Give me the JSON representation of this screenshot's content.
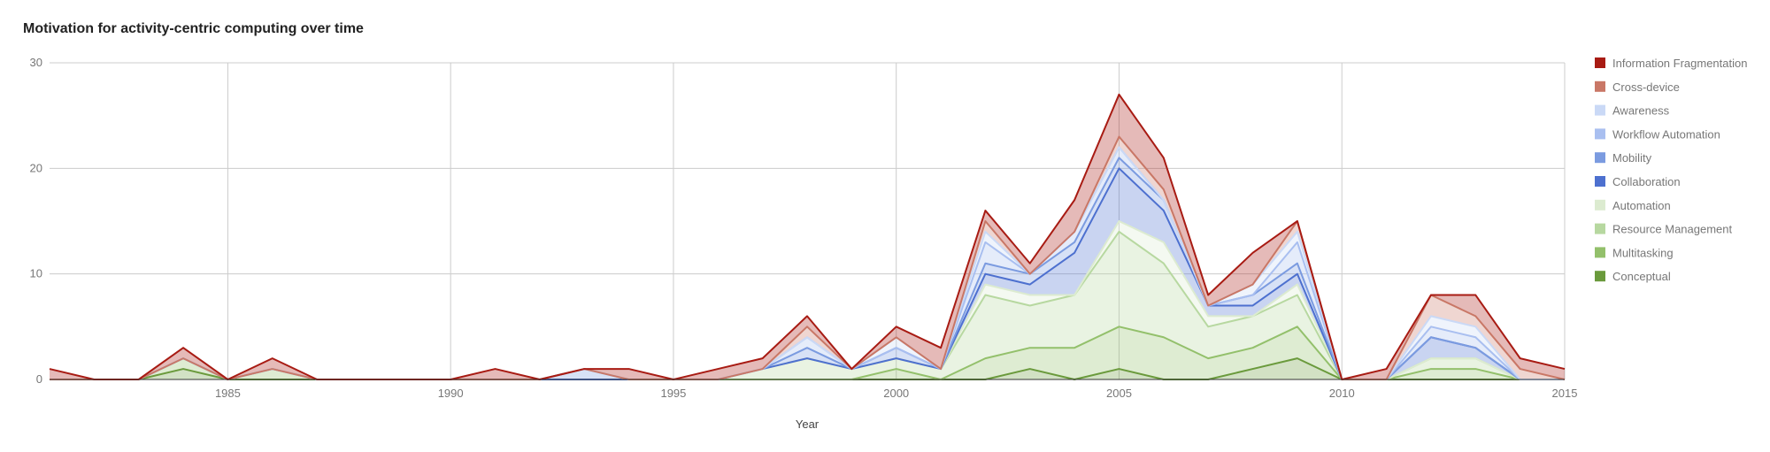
{
  "chart_data": {
    "type": "area",
    "stacked": true,
    "title": "Motivation for activity-centric computing over time",
    "xlabel": "Year",
    "ylabel": "",
    "xlim": [
      1981,
      2015
    ],
    "ylim": [
      0,
      30
    ],
    "x_ticks": [
      1985,
      1990,
      1995,
      2000,
      2005,
      2010,
      2015
    ],
    "y_ticks": [
      0,
      10,
      20,
      30
    ],
    "grid": true,
    "legend_position": "right",
    "x": [
      1981,
      1982,
      1983,
      1984,
      1985,
      1986,
      1987,
      1988,
      1989,
      1990,
      1991,
      1992,
      1993,
      1994,
      1995,
      1996,
      1997,
      1998,
      1999,
      2000,
      2001,
      2002,
      2003,
      2004,
      2005,
      2006,
      2007,
      2008,
      2009,
      2010,
      2011,
      2012,
      2013,
      2014,
      2015
    ],
    "series": [
      {
        "name": "Conceptual",
        "color": "#6a9a3c",
        "values": [
          0,
          0,
          0,
          1,
          0,
          0,
          0,
          0,
          0,
          0,
          0,
          0,
          0,
          0,
          0,
          0,
          0,
          0,
          0,
          0,
          0,
          0,
          1,
          0,
          1,
          0,
          0,
          1,
          2,
          0,
          0,
          0,
          0,
          0,
          0
        ]
      },
      {
        "name": "Multitasking",
        "color": "#93c06b",
        "values": [
          0,
          0,
          0,
          1,
          0,
          1,
          0,
          0,
          0,
          0,
          0,
          0,
          0,
          0,
          0,
          0,
          0,
          0,
          0,
          1,
          0,
          2,
          2,
          3,
          4,
          4,
          2,
          2,
          3,
          0,
          0,
          1,
          1,
          0,
          0
        ]
      },
      {
        "name": "Resource Management",
        "color": "#b7d8a0",
        "values": [
          0,
          0,
          0,
          0,
          0,
          0,
          0,
          0,
          0,
          0,
          0,
          0,
          0,
          0,
          0,
          0,
          1,
          2,
          1,
          1,
          1,
          6,
          4,
          5,
          9,
          7,
          3,
          3,
          3,
          0,
          0,
          1,
          1,
          0,
          0
        ]
      },
      {
        "name": "Automation",
        "color": "#dcebd0",
        "values": [
          0,
          0,
          0,
          0,
          0,
          0,
          0,
          0,
          0,
          0,
          0,
          0,
          0,
          0,
          0,
          0,
          0,
          0,
          0,
          0,
          0,
          1,
          1,
          0,
          1,
          2,
          1,
          0,
          1,
          0,
          0,
          0,
          0,
          0,
          0
        ]
      },
      {
        "name": "Collaboration",
        "color": "#4d70cf",
        "values": [
          0,
          0,
          0,
          0,
          0,
          0,
          0,
          0,
          0,
          0,
          0,
          0,
          0,
          0,
          0,
          0,
          0,
          0,
          0,
          0,
          0,
          1,
          1,
          4,
          5,
          3,
          1,
          1,
          1,
          0,
          0,
          2,
          1,
          0,
          0
        ]
      },
      {
        "name": "Mobility",
        "color": "#7b9be0",
        "values": [
          0,
          0,
          0,
          0,
          0,
          0,
          0,
          0,
          0,
          0,
          0,
          0,
          1,
          0,
          0,
          0,
          0,
          1,
          0,
          1,
          0,
          1,
          1,
          1,
          1,
          1,
          0,
          1,
          1,
          0,
          0,
          0,
          0,
          0,
          0
        ]
      },
      {
        "name": "Workflow Automation",
        "color": "#a9bff0",
        "values": [
          0,
          0,
          0,
          0,
          0,
          0,
          0,
          0,
          0,
          0,
          0,
          0,
          0,
          0,
          0,
          0,
          0,
          1,
          0,
          0,
          0,
          2,
          0,
          1,
          1,
          0,
          0,
          0,
          2,
          0,
          0,
          1,
          1,
          0,
          0
        ]
      },
      {
        "name": "Awareness",
        "color": "#cad9f6",
        "values": [
          0,
          0,
          0,
          0,
          0,
          0,
          0,
          0,
          0,
          0,
          0,
          0,
          0,
          0,
          0,
          0,
          0,
          0,
          0,
          1,
          0,
          1,
          0,
          0,
          0,
          0,
          0,
          1,
          1,
          0,
          0,
          1,
          1,
          0,
          0
        ]
      },
      {
        "name": "Cross-device",
        "color": "#c97766",
        "values": [
          0,
          0,
          0,
          0,
          0,
          0,
          0,
          0,
          0,
          0,
          0,
          0,
          0,
          0,
          0,
          0,
          0,
          1,
          0,
          0,
          0,
          1,
          0,
          0,
          1,
          1,
          0,
          0,
          1,
          0,
          0,
          2,
          1,
          1,
          0
        ]
      },
      {
        "name": "Information Fragmentation",
        "color": "#a81b13",
        "values": [
          1,
          0,
          0,
          1,
          0,
          1,
          0,
          0,
          0,
          0,
          1,
          0,
          0,
          1,
          0,
          1,
          1,
          1,
          0,
          1,
          2,
          1,
          1,
          3,
          4,
          3,
          1,
          3,
          0,
          0,
          1,
          0,
          2,
          1,
          1
        ]
      }
    ]
  }
}
